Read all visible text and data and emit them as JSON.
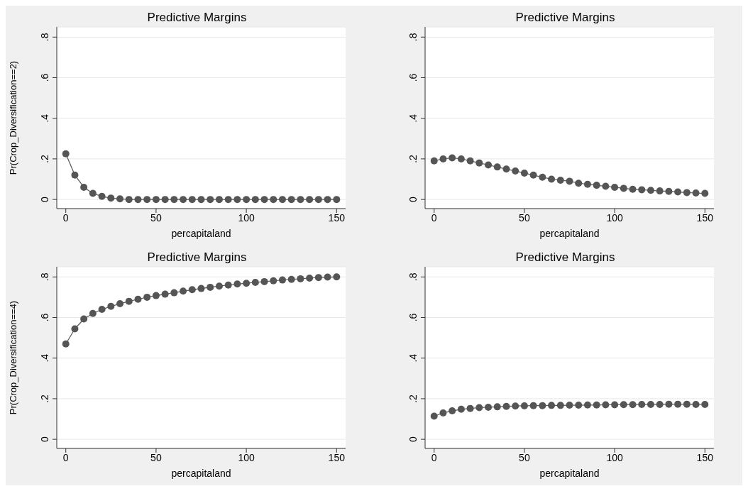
{
  "chart_data": [
    {
      "type": "line",
      "title": "Predictive Margins",
      "xlabel": "percapitaland",
      "ylabel": "Pr(Crop_Diversification==2)",
      "x": [
        0,
        5,
        10,
        15,
        20,
        25,
        30,
        35,
        40,
        45,
        50,
        55,
        60,
        65,
        70,
        75,
        80,
        85,
        90,
        95,
        100,
        105,
        110,
        115,
        120,
        125,
        130,
        135,
        140,
        145,
        150
      ],
      "series": [
        {
          "color": "#555555",
          "values": [
            0.225,
            0.12,
            0.06,
            0.03,
            0.015,
            0.007,
            0.003,
            0,
            0,
            0,
            0,
            0,
            0,
            0,
            0,
            0,
            0,
            0,
            0,
            0,
            0,
            0,
            0,
            0,
            0,
            0,
            0,
            0,
            0,
            0,
            0
          ]
        }
      ],
      "xlim": [
        -5,
        155
      ],
      "xticks": [
        0,
        50,
        100,
        150
      ],
      "ylim": [
        -0.045,
        0.85
      ],
      "yticks": [
        {
          "value": 0,
          "label": "0"
        },
        {
          "value": 0.2,
          "label": ".2"
        },
        {
          "value": 0.4,
          "label": ".4"
        },
        {
          "value": 0.6,
          "label": ".6"
        },
        {
          "value": 0.8,
          "label": ".8"
        }
      ],
      "grid": "y",
      "marker": "circle",
      "legend": false
    },
    {
      "type": "line",
      "title": "Predictive Margins",
      "xlabel": "percapitaland",
      "x": [
        0,
        5,
        10,
        15,
        20,
        25,
        30,
        35,
        40,
        45,
        50,
        55,
        60,
        65,
        70,
        75,
        80,
        85,
        90,
        95,
        100,
        105,
        110,
        115,
        120,
        125,
        130,
        135,
        140,
        145,
        150
      ],
      "series": [
        {
          "color": "#555555",
          "values": [
            0.19,
            0.2,
            0.205,
            0.2,
            0.19,
            0.18,
            0.17,
            0.16,
            0.15,
            0.14,
            0.13,
            0.12,
            0.11,
            0.1,
            0.095,
            0.09,
            0.08,
            0.075,
            0.07,
            0.065,
            0.06,
            0.055,
            0.05,
            0.048,
            0.045,
            0.042,
            0.04,
            0.037,
            0.034,
            0.032,
            0.03
          ]
        }
      ],
      "xlim": [
        -5,
        155
      ],
      "xticks": [
        0,
        50,
        100,
        150
      ],
      "ylim": [
        -0.045,
        0.85
      ],
      "yticks": [
        {
          "value": 0,
          "label": "0"
        },
        {
          "value": 0.2,
          "label": ".2"
        },
        {
          "value": 0.4,
          "label": ".4"
        },
        {
          "value": 0.6,
          "label": ".6"
        },
        {
          "value": 0.8,
          "label": ".8"
        }
      ],
      "grid": "y",
      "marker": "circle",
      "legend": false
    },
    {
      "type": "line",
      "title": "Predictive Margins",
      "xlabel": "percapitaland",
      "ylabel": "Pr(Crop_Diversification==4)",
      "x": [
        0,
        5,
        10,
        15,
        20,
        25,
        30,
        35,
        40,
        45,
        50,
        55,
        60,
        65,
        70,
        75,
        80,
        85,
        90,
        95,
        100,
        105,
        110,
        115,
        120,
        125,
        130,
        135,
        140,
        145,
        150
      ],
      "series": [
        {
          "color": "#555555",
          "values": [
            0.47,
            0.544,
            0.593,
            0.62,
            0.64,
            0.655,
            0.668,
            0.68,
            0.69,
            0.7,
            0.708,
            0.715,
            0.722,
            0.73,
            0.737,
            0.743,
            0.749,
            0.755,
            0.76,
            0.765,
            0.769,
            0.773,
            0.777,
            0.781,
            0.785,
            0.788,
            0.791,
            0.794,
            0.797,
            0.799,
            0.8
          ]
        }
      ],
      "xlim": [
        -5,
        155
      ],
      "xticks": [
        0,
        50,
        100,
        150
      ],
      "ylim": [
        -0.045,
        0.85
      ],
      "yticks": [
        {
          "value": 0,
          "label": "0"
        },
        {
          "value": 0.2,
          "label": ".2"
        },
        {
          "value": 0.4,
          "label": ".4"
        },
        {
          "value": 0.6,
          "label": ".6"
        },
        {
          "value": 0.8,
          "label": ".8"
        }
      ],
      "grid": "y",
      "marker": "circle",
      "legend": false
    },
    {
      "type": "line",
      "title": "Predictive Margins",
      "xlabel": "percapitaland",
      "x": [
        0,
        5,
        10,
        15,
        20,
        25,
        30,
        35,
        40,
        45,
        50,
        55,
        60,
        65,
        70,
        75,
        80,
        85,
        90,
        95,
        100,
        105,
        110,
        115,
        120,
        125,
        130,
        135,
        140,
        145,
        150
      ],
      "series": [
        {
          "color": "#555555",
          "values": [
            0.114,
            0.13,
            0.14,
            0.148,
            0.152,
            0.156,
            0.158,
            0.16,
            0.162,
            0.164,
            0.165,
            0.166,
            0.166,
            0.167,
            0.167,
            0.168,
            0.168,
            0.169,
            0.169,
            0.17,
            0.17,
            0.171,
            0.171,
            0.172,
            0.172,
            0.172,
            0.173,
            0.173,
            0.173,
            0.172,
            0.172
          ]
        }
      ],
      "xlim": [
        -5,
        155
      ],
      "xticks": [
        0,
        50,
        100,
        150
      ],
      "ylim": [
        -0.045,
        0.85
      ],
      "yticks": [
        {
          "value": 0,
          "label": "0"
        },
        {
          "value": 0.2,
          "label": ".2"
        },
        {
          "value": 0.4,
          "label": ".4"
        },
        {
          "value": 0.6,
          "label": ".6"
        },
        {
          "value": 0.8,
          "label": ".8"
        }
      ],
      "grid": "y",
      "marker": "circle",
      "legend": false
    }
  ]
}
